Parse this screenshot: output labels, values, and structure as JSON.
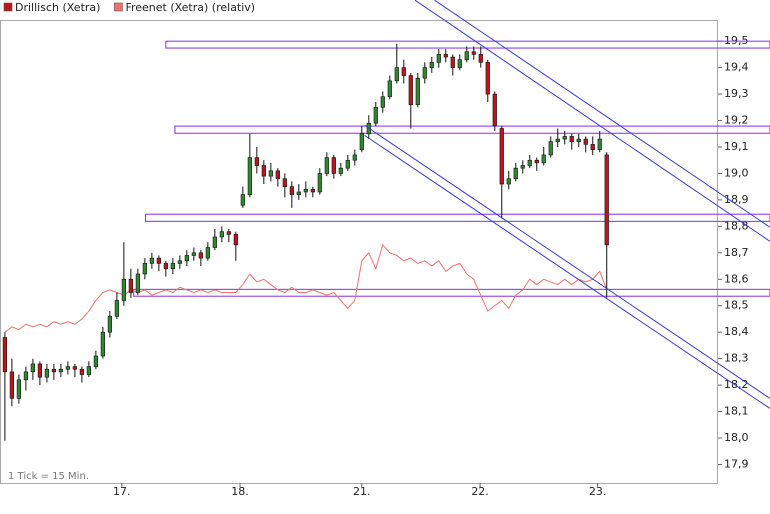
{
  "chart_data": {
    "type": "candlestick",
    "note": "1 Tick = 15 Min.",
    "xlim": [
      -0.7,
      101.9
    ],
    "ylim": [
      17.83,
      19.58
    ],
    "xticks": [
      {
        "value": 16.7,
        "label": "17."
      },
      {
        "value": 33.6,
        "label": "18."
      },
      {
        "value": 51,
        "label": "21."
      },
      {
        "value": 67.9,
        "label": "22."
      },
      {
        "value": 84.7,
        "label": "23."
      }
    ],
    "yticks": [
      {
        "value": 17.9,
        "label": "17,9"
      },
      {
        "value": 18.0,
        "label": "18,0"
      },
      {
        "value": 18.1,
        "label": "18,1"
      },
      {
        "value": 18.2,
        "label": "18,2"
      },
      {
        "value": 18.3,
        "label": "18,3"
      },
      {
        "value": 18.4,
        "label": "18,4"
      },
      {
        "value": 18.5,
        "label": "18,5"
      },
      {
        "value": 18.6,
        "label": "18,6"
      },
      {
        "value": 18.7,
        "label": "18,7"
      },
      {
        "value": 18.8,
        "label": "18,8"
      },
      {
        "value": 18.9,
        "label": "18,9"
      },
      {
        "value": 19.0,
        "label": "19,0"
      },
      {
        "value": 19.1,
        "label": "19,1"
      },
      {
        "value": 19.2,
        "label": "19,2"
      },
      {
        "value": 19.3,
        "label": "19,3"
      },
      {
        "value": 19.4,
        "label": "19,4"
      },
      {
        "value": 19.5,
        "label": "19,5"
      }
    ],
    "series": [
      {
        "name": "Drillisch (Xetra)",
        "type": "candlestick",
        "color": "#c0141c",
        "up_color": "#2f8a2f",
        "down_color": "#c0141c",
        "ohlc": [
          [
            18.38,
            18.4,
            17.99,
            18.25
          ],
          [
            18.25,
            18.3,
            18.12,
            18.15
          ],
          [
            18.15,
            18.24,
            18.13,
            18.22
          ],
          [
            18.22,
            18.27,
            18.18,
            18.25
          ],
          [
            18.25,
            18.3,
            18.22,
            18.28
          ],
          [
            18.28,
            18.29,
            18.2,
            18.23
          ],
          [
            18.23,
            18.28,
            18.21,
            18.26
          ],
          [
            18.26,
            18.28,
            18.22,
            18.25
          ],
          [
            18.25,
            18.28,
            18.23,
            18.26
          ],
          [
            18.26,
            18.29,
            18.24,
            18.27
          ],
          [
            18.27,
            18.28,
            18.23,
            18.26
          ],
          [
            18.26,
            18.27,
            18.21,
            18.24
          ],
          [
            18.24,
            18.29,
            18.23,
            18.27
          ],
          [
            18.27,
            18.33,
            18.26,
            18.31
          ],
          [
            18.31,
            18.42,
            18.3,
            18.4
          ],
          [
            18.4,
            18.48,
            18.38,
            18.46
          ],
          [
            18.46,
            18.55,
            18.45,
            18.52
          ],
          [
            18.52,
            18.74,
            18.5,
            18.6
          ],
          [
            18.6,
            18.64,
            18.53,
            18.55
          ],
          [
            18.55,
            18.64,
            18.54,
            18.62
          ],
          [
            18.62,
            18.68,
            18.6,
            18.66
          ],
          [
            18.66,
            18.7,
            18.64,
            18.68
          ],
          [
            18.68,
            18.69,
            18.63,
            18.66
          ],
          [
            18.66,
            18.67,
            18.61,
            18.64
          ],
          [
            18.64,
            18.68,
            18.62,
            18.66
          ],
          [
            18.66,
            18.69,
            18.64,
            18.67
          ],
          [
            18.67,
            18.71,
            18.65,
            18.69
          ],
          [
            18.69,
            18.72,
            18.67,
            18.7
          ],
          [
            18.7,
            18.71,
            18.65,
            18.68
          ],
          [
            18.68,
            18.74,
            18.67,
            18.72
          ],
          [
            18.72,
            18.79,
            18.71,
            18.76
          ],
          [
            18.76,
            18.8,
            18.74,
            18.78
          ],
          [
            18.78,
            18.79,
            18.74,
            18.77
          ],
          [
            18.77,
            18.78,
            18.67,
            18.73
          ],
          [
            18.88,
            18.95,
            18.87,
            18.92
          ],
          [
            18.92,
            19.15,
            18.91,
            19.06
          ],
          [
            19.06,
            19.1,
            19.0,
            19.03
          ],
          [
            19.03,
            19.05,
            18.96,
            18.99
          ],
          [
            18.99,
            19.04,
            18.97,
            19.01
          ],
          [
            19.01,
            19.02,
            18.95,
            18.98
          ],
          [
            18.98,
            19.0,
            18.91,
            18.95
          ],
          [
            18.95,
            18.97,
            18.87,
            18.92
          ],
          [
            18.92,
            18.96,
            18.9,
            18.93
          ],
          [
            18.93,
            18.97,
            18.91,
            18.94
          ],
          [
            18.94,
            18.95,
            18.91,
            18.93
          ],
          [
            18.93,
            19.02,
            18.92,
            19.0
          ],
          [
            19.0,
            19.08,
            18.99,
            19.06
          ],
          [
            19.06,
            19.07,
            18.98,
            19.0
          ],
          [
            19.0,
            19.04,
            18.99,
            19.02
          ],
          [
            19.02,
            19.07,
            19.01,
            19.05
          ],
          [
            19.05,
            19.09,
            19.03,
            19.07
          ],
          [
            19.09,
            19.18,
            19.08,
            19.15
          ],
          [
            19.15,
            19.22,
            19.13,
            19.19
          ],
          [
            19.19,
            19.27,
            19.18,
            19.25
          ],
          [
            19.25,
            19.31,
            19.23,
            19.29
          ],
          [
            19.29,
            19.37,
            19.28,
            19.35
          ],
          [
            19.35,
            19.49,
            19.34,
            19.4
          ],
          [
            19.4,
            19.43,
            19.34,
            19.37
          ],
          [
            19.37,
            19.38,
            19.17,
            19.26
          ],
          [
            19.26,
            19.38,
            19.25,
            19.36
          ],
          [
            19.36,
            19.42,
            19.34,
            19.4
          ],
          [
            19.4,
            19.44,
            19.38,
            19.42
          ],
          [
            19.42,
            19.47,
            19.4,
            19.45
          ],
          [
            19.45,
            19.47,
            19.42,
            19.44
          ],
          [
            19.44,
            19.45,
            19.37,
            19.4
          ],
          [
            19.4,
            19.45,
            19.39,
            19.43
          ],
          [
            19.43,
            19.48,
            19.42,
            19.46
          ],
          [
            19.46,
            19.48,
            19.43,
            19.45
          ],
          [
            19.45,
            19.48,
            19.4,
            19.42
          ],
          [
            19.42,
            19.43,
            19.27,
            19.3
          ],
          [
            19.3,
            19.31,
            19.16,
            19.18
          ],
          [
            19.17,
            19.18,
            18.83,
            18.96
          ],
          [
            18.96,
            19.01,
            18.94,
            18.98
          ],
          [
            18.98,
            19.04,
            18.97,
            19.02
          ],
          [
            19.02,
            19.05,
            19.0,
            19.03
          ],
          [
            19.03,
            19.07,
            19.02,
            19.05
          ],
          [
            19.05,
            19.06,
            19.01,
            19.04
          ],
          [
            19.04,
            19.1,
            19.03,
            19.07
          ],
          [
            19.07,
            19.14,
            19.06,
            19.12
          ],
          [
            19.12,
            19.17,
            19.1,
            19.13
          ],
          [
            19.13,
            19.16,
            19.11,
            19.14
          ],
          [
            19.14,
            19.15,
            19.09,
            19.12
          ],
          [
            19.12,
            19.15,
            19.1,
            19.13
          ],
          [
            19.13,
            19.14,
            19.08,
            19.11
          ],
          [
            19.11,
            19.14,
            19.07,
            19.09
          ],
          [
            19.09,
            19.16,
            19.08,
            19.13
          ],
          [
            19.07,
            19.08,
            18.53,
            18.73
          ]
        ]
      },
      {
        "name": "Freenet (Xetra) (relativ)",
        "type": "line",
        "color": "#f07070",
        "values": [
          18.4,
          18.42,
          18.41,
          18.43,
          18.42,
          18.43,
          18.42,
          18.44,
          18.43,
          18.44,
          18.43,
          18.45,
          18.48,
          18.52,
          18.55,
          18.56,
          18.55,
          18.54,
          18.56,
          18.55,
          18.56,
          18.54,
          18.55,
          18.56,
          18.55,
          18.57,
          18.56,
          18.55,
          18.56,
          18.55,
          18.56,
          18.55,
          18.55,
          18.55,
          18.58,
          18.62,
          18.59,
          18.6,
          18.58,
          18.56,
          18.55,
          18.57,
          18.55,
          18.55,
          18.56,
          18.55,
          18.54,
          18.55,
          18.52,
          18.49,
          18.52,
          18.67,
          18.7,
          18.64,
          18.73,
          18.7,
          18.69,
          18.67,
          18.68,
          18.66,
          18.67,
          18.65,
          18.67,
          18.63,
          18.65,
          18.66,
          18.62,
          18.6,
          18.54,
          18.48,
          18.5,
          18.52,
          18.49,
          18.54,
          18.56,
          18.6,
          18.58,
          18.6,
          18.59,
          18.58,
          18.6,
          18.58,
          18.6,
          18.59,
          18.6,
          18.63,
          18.56
        ]
      }
    ],
    "bands": [
      {
        "x": 23,
        "y": [
          19.474,
          19.5
        ],
        "color": "#8a2be2"
      },
      {
        "x": 24.3,
        "y": [
          19.152,
          19.179
        ],
        "color": "#8a2be2"
      },
      {
        "x": 20.1,
        "y": [
          18.819,
          18.846
        ],
        "color": "#8a2be2"
      },
      {
        "x": 18.4,
        "y": [
          18.536,
          18.562
        ],
        "color": "#8a2be2"
      }
    ],
    "trend_lines": [
      {
        "x": [
          61.4,
          109.3
        ],
        "y": [
          19.655,
          18.797
        ],
        "color": "#3a3ad0"
      },
      {
        "x": [
          58.6,
          109.3
        ],
        "y": [
          19.655,
          18.744
        ],
        "color": "#3a3ad0"
      },
      {
        "x": [
          51.4,
          109.3
        ],
        "y": [
          19.182,
          18.15
        ],
        "color": "#3a3ad0"
      },
      {
        "x": [
          51.4,
          109.3
        ],
        "y": [
          19.144,
          18.112
        ],
        "color": "#3a3ad0"
      }
    ]
  }
}
